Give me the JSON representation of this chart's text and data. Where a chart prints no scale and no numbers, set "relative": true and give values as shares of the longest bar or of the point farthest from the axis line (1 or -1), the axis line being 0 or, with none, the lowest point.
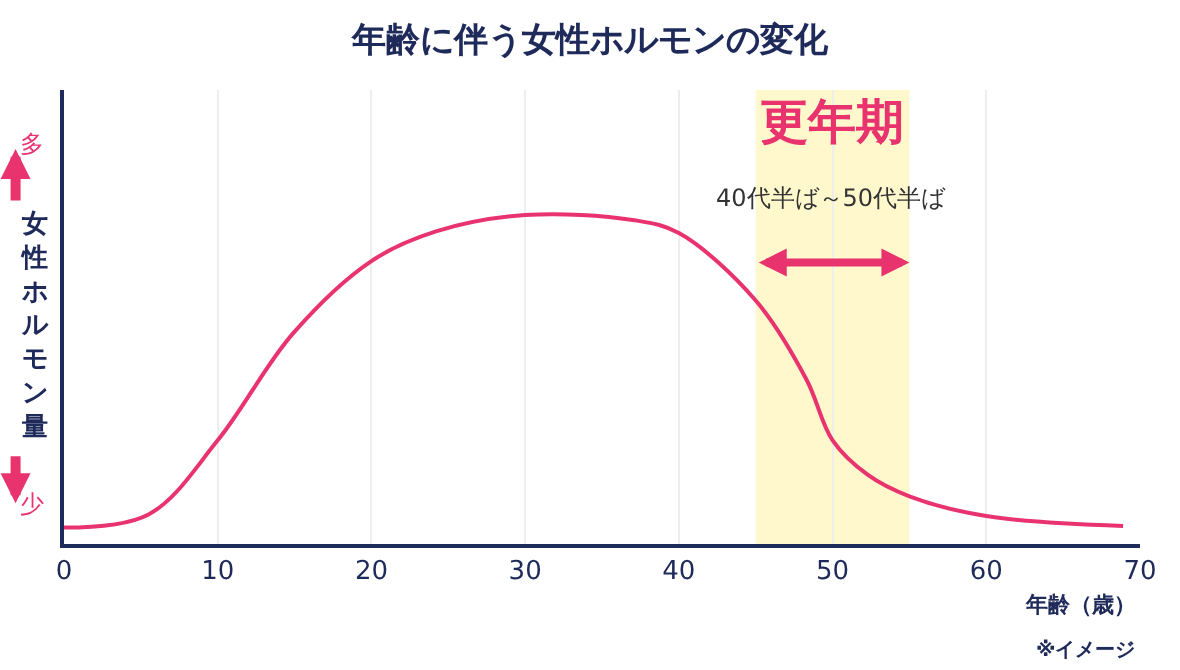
{
  "chart_data": {
    "type": "line",
    "title": "年齢に伴う女性ホルモンの変化",
    "xlabel": "年齢（歳）",
    "ylabel": "女性ホルモン量",
    "relative": true,
    "x": [
      0,
      5.5,
      10,
      14.9,
      20,
      24.2,
      30,
      37,
      40,
      45,
      48.3,
      50,
      52.3,
      55,
      60,
      68.9
    ],
    "series": [
      {
        "color": "#e8336f",
        "values": [
          0.05,
          0.09,
          0.315,
          0.64,
          0.86,
          0.95,
          1.0,
          0.985,
          0.945,
          0.74,
          0.5,
          0.315,
          0.21,
          0.145,
          0.085,
          0.055
        ]
      }
    ],
    "xlim": [
      0,
      70
    ],
    "xticks": [
      0,
      10,
      20,
      30,
      40,
      50,
      60,
      70
    ],
    "grid": "x",
    "marker": "none",
    "line_style": "solid",
    "bands": [
      {
        "axis": "x",
        "from": 45,
        "to": 55,
        "label": "更年期",
        "color": "#fff8cc"
      }
    ],
    "annotations": [
      "40代半ば～50代半ば",
      "多",
      "少",
      "※イメージ"
    ]
  }
}
